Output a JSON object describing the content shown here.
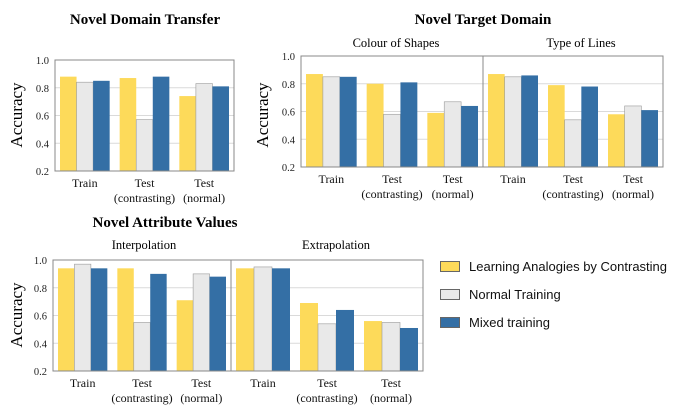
{
  "colors": {
    "lac": "#FDDA5A",
    "normal": "#E9E9E9",
    "mixed": "#346FA5",
    "grid": "#DADADA",
    "axis": "#888888"
  },
  "legend": [
    {
      "name": "Learning Analogies by Contrasting",
      "color": "#FDDA5A"
    },
    {
      "name": "Normal Training",
      "color": "#E9E9E9"
    },
    {
      "name": "Mixed training",
      "color": "#346FA5"
    }
  ],
  "chart_data": [
    {
      "type": "bar",
      "title": "Novel Domain Transfer",
      "subtitle": "",
      "ylabel": "Accuracy",
      "ylim": [
        0.2,
        1.0
      ],
      "yticks": [
        "0.2",
        "0.4",
        "0.6",
        "0.8",
        "1.0"
      ],
      "grid": true,
      "categories": [
        "Train",
        "Test\n(contrasting)",
        "Test\n(normal)"
      ],
      "series": [
        {
          "name": "Learning Analogies by Contrasting",
          "values": [
            0.88,
            0.87,
            0.74
          ]
        },
        {
          "name": "Normal Training",
          "values": [
            0.84,
            0.57,
            0.83
          ]
        },
        {
          "name": "Mixed training",
          "values": [
            0.85,
            0.88,
            0.81
          ]
        }
      ]
    },
    {
      "type": "bar",
      "title": "Novel Target Domain",
      "subtitle": "Colour of Shapes",
      "ylabel": "Accuracy",
      "ylim": [
        0.2,
        1.0
      ],
      "yticks": [
        "0.2",
        "0.4",
        "0.6",
        "0.8",
        "1.0"
      ],
      "grid": true,
      "categories": [
        "Train",
        "Test\n(contrasting)",
        "Test\n(normal)"
      ],
      "series": [
        {
          "name": "Learning Analogies by Contrasting",
          "values": [
            0.87,
            0.8,
            0.59
          ]
        },
        {
          "name": "Normal Training",
          "values": [
            0.85,
            0.58,
            0.67
          ]
        },
        {
          "name": "Mixed training",
          "values": [
            0.85,
            0.81,
            0.64
          ]
        }
      ]
    },
    {
      "type": "bar",
      "title": "",
      "subtitle": "Type of Lines",
      "ylabel": "",
      "ylim": [
        0.2,
        1.0
      ],
      "yticks": [],
      "grid": true,
      "categories": [
        "Train",
        "Test\n(contrasting)",
        "Test\n(normal)"
      ],
      "series": [
        {
          "name": "Learning Analogies by Contrasting",
          "values": [
            0.87,
            0.79,
            0.58
          ]
        },
        {
          "name": "Normal Training",
          "values": [
            0.85,
            0.54,
            0.64
          ]
        },
        {
          "name": "Mixed training",
          "values": [
            0.86,
            0.78,
            0.61
          ]
        }
      ]
    },
    {
      "type": "bar",
      "title": "Novel Attribute Values",
      "subtitle": "Interpolation",
      "ylabel": "Accuracy",
      "ylim": [
        0.2,
        1.0
      ],
      "yticks": [
        "0.2",
        "0.4",
        "0.6",
        "0.8",
        "1.0"
      ],
      "grid": true,
      "categories": [
        "Train",
        "Test\n(contrasting)",
        "Test\n(normal)"
      ],
      "series": [
        {
          "name": "Learning Analogies by Contrasting",
          "values": [
            0.94,
            0.94,
            0.71
          ]
        },
        {
          "name": "Normal Training",
          "values": [
            0.97,
            0.55,
            0.9
          ]
        },
        {
          "name": "Mixed training",
          "values": [
            0.94,
            0.9,
            0.88
          ]
        }
      ]
    },
    {
      "type": "bar",
      "title": "",
      "subtitle": "Extrapolation",
      "ylabel": "",
      "ylim": [
        0.2,
        1.0
      ],
      "yticks": [],
      "grid": true,
      "categories": [
        "Train",
        "Test\n(contrasting)",
        "Test\n(normal)"
      ],
      "series": [
        {
          "name": "Learning Analogies by Contrasting",
          "values": [
            0.94,
            0.69,
            0.56
          ]
        },
        {
          "name": "Normal Training",
          "values": [
            0.95,
            0.54,
            0.55
          ]
        },
        {
          "name": "Mixed training",
          "values": [
            0.94,
            0.64,
            0.51
          ]
        }
      ]
    }
  ]
}
